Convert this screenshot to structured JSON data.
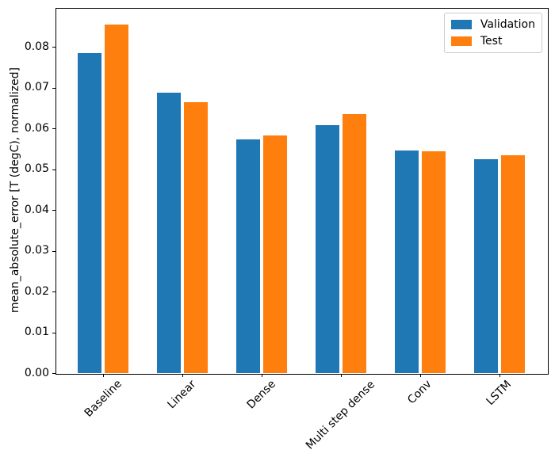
{
  "chart_data": {
    "type": "bar",
    "title": "",
    "xlabel": "",
    "ylabel": "mean_absolute_error [T (degC), normalized]",
    "categories": [
      "Baseline",
      "Linear",
      "Dense",
      "Multi step dense",
      "Conv",
      "LSTM"
    ],
    "series": [
      {
        "name": "Validation",
        "color": "#1f77b4",
        "values": [
          0.0786,
          0.0688,
          0.0573,
          0.0608,
          0.0546,
          0.0525
        ]
      },
      {
        "name": "Test",
        "color": "#ff7f0e",
        "values": [
          0.0855,
          0.0664,
          0.0583,
          0.0635,
          0.0544,
          0.0534
        ]
      }
    ],
    "ylim": [
      0,
      0.0896
    ],
    "yticks": {
      "values": [
        0,
        0.01,
        0.02,
        0.03,
        0.04,
        0.05,
        0.06,
        0.07,
        0.08
      ],
      "labels": [
        "0.00",
        "0.01",
        "0.02",
        "0.03",
        "0.04",
        "0.05",
        "0.06",
        "0.07",
        "0.08"
      ]
    },
    "bar_width": 0.3,
    "bar_offset": 0.17,
    "x_tick_rotation": 45,
    "grid": false,
    "legend": {
      "position": "upper right",
      "entries": [
        "Validation",
        "Test"
      ]
    }
  }
}
